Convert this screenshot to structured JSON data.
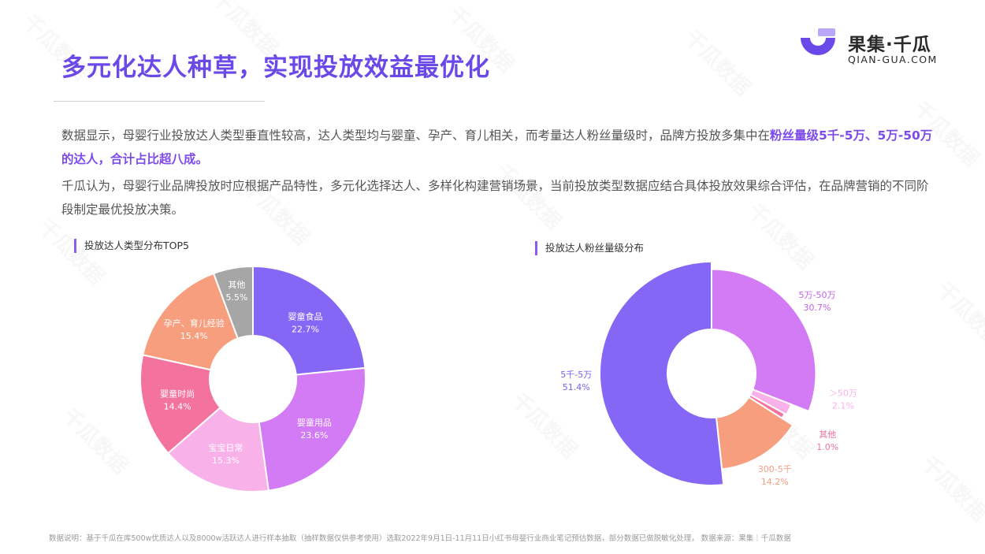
{
  "header": {
    "title": "多元化达人种草，实现投放效益最优化",
    "logo_name": "果集·千瓜",
    "logo_url": "QIAN-GUA.COM"
  },
  "body": {
    "p1_a": "数据显示，母婴行业投放达人类型垂直性较高，达人类型均与婴童、孕产、育儿相关，而考量达人粉丝量级时，品牌方投放多集中在",
    "p1_highlight": "粉丝量级5千-5万、5万-50万的达人，合计占比超八成。",
    "p2": "千瓜认为，母婴行业品牌投放时应根据产品特性，多元化选择达人、多样化构建营销场景，当前投放类型数据应结合具体投放效果综合评估，在品牌营销的不同阶段制定最优投放决策。"
  },
  "footnote": "数据说明：基于千瓜在库500w优质达人以及8000w活跃达人进行样本抽取（抽样数据仅供参考使用）选取2022年9月1日-11月11日小红书母婴行业商业笔记预估数据，部分数据已做脱敏化处理， 数据来源：果集｜千瓜数据",
  "watermark": "千瓜数据",
  "colors": {
    "accent": "#6b49e8",
    "highlight": "#7d4bea",
    "slice_purple": "#8566f5",
    "slice_violet": "#d37af5",
    "slice_lightpink": "#f9b1ea",
    "slice_hotpink": "#f3739e",
    "slice_salmon": "#f79e7e",
    "slice_gray": "#a6a6a6"
  },
  "chart_data": [
    {
      "type": "pie",
      "title": "投放达人类型分布TOP5",
      "donut": true,
      "label_position": "inside",
      "slices": [
        {
          "label": "婴童食品",
          "value": 22.7,
          "display": "22.7%",
          "color": "#8566f5"
        },
        {
          "label": "婴童用品",
          "value": 23.6,
          "display": "23.6%",
          "color": "#d37af5"
        },
        {
          "label": "宝宝日常",
          "value": 15.3,
          "display": "15.3%",
          "color": "#f9b1ea"
        },
        {
          "label": "婴童时尚",
          "value": 14.4,
          "display": "14.4%",
          "color": "#f3739e"
        },
        {
          "label": "孕产、育儿经验",
          "value": 15.4,
          "display": "15.4%",
          "color": "#f79e7e"
        },
        {
          "label": "其他",
          "value": 5.5,
          "display": "5.5%",
          "color": "#a6a6a6"
        }
      ]
    },
    {
      "type": "pie",
      "title": "投放达人粉丝量级分布",
      "donut": true,
      "rose": true,
      "label_position": "outside",
      "slices": [
        {
          "label": "5万-50万",
          "value": 30.7,
          "display": "30.7%",
          "color": "#d37af5"
        },
        {
          "label": "＞50万",
          "value": 2.1,
          "display": "2.1%",
          "color": "#f9b1ea"
        },
        {
          "label": "其他",
          "value": 1.0,
          "display": "1.0%",
          "color": "#f3739e"
        },
        {
          "label": "300-5千",
          "value": 14.2,
          "display": "14.2%",
          "color": "#f79e7e"
        },
        {
          "label": "5千-5万",
          "value": 51.4,
          "display": "51.4%",
          "color": "#8566f5"
        }
      ]
    }
  ]
}
